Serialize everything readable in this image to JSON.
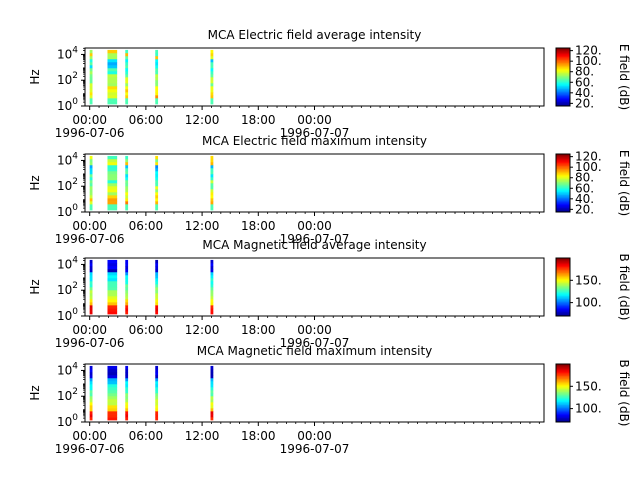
{
  "chart_data": [
    {
      "type": "heatmap",
      "title": "MCA  Electric field average intensity",
      "ylabel": "Hz",
      "yscale": "log",
      "yticks": [
        {
          "exp": "0"
        },
        {
          "exp": "2"
        },
        {
          "exp": "4"
        }
      ],
      "xlim_hours": [
        -0.5,
        48.5
      ],
      "xticks": [
        {
          "hour": 0,
          "label": "00:00",
          "date": "1996-07-06"
        },
        {
          "hour": 6,
          "label": "06:00",
          "date": ""
        },
        {
          "hour": 12,
          "label": "12:00",
          "date": ""
        },
        {
          "hour": 18,
          "label": "18:00",
          "date": ""
        },
        {
          "hour": 24,
          "label": "00:00",
          "date": "1996-07-07"
        }
      ],
      "colorbar": {
        "label": "E field (dB)",
        "ticks": [
          "20.",
          "40.",
          "60.",
          "80.",
          "100.",
          "120."
        ],
        "range": [
          15,
          125
        ]
      },
      "bursts_hours": [
        [
          0.0,
          0.1
        ],
        [
          1.9,
          2.9
        ],
        [
          3.8,
          3.95
        ],
        [
          7.0,
          7.15
        ],
        [
          12.9,
          13.0
        ]
      ]
    },
    {
      "type": "heatmap",
      "title": "MCA  Electric field maximum intensity",
      "ylabel": "Hz",
      "yscale": "log",
      "yticks": [
        {
          "exp": "0"
        },
        {
          "exp": "2"
        },
        {
          "exp": "4"
        }
      ],
      "xlim_hours": [
        -0.5,
        48.5
      ],
      "xticks": [
        {
          "hour": 0,
          "label": "00:00",
          "date": "1996-07-06"
        },
        {
          "hour": 6,
          "label": "06:00",
          "date": ""
        },
        {
          "hour": 12,
          "label": "12:00",
          "date": ""
        },
        {
          "hour": 18,
          "label": "18:00",
          "date": ""
        },
        {
          "hour": 24,
          "label": "00:00",
          "date": "1996-07-07"
        }
      ],
      "colorbar": {
        "label": "E field (dB)",
        "ticks": [
          "20.",
          "40.",
          "60.",
          "80.",
          "100.",
          "120."
        ],
        "range": [
          15,
          125
        ]
      },
      "bursts_hours": [
        [
          0.0,
          0.1
        ],
        [
          1.9,
          2.9
        ],
        [
          3.8,
          3.95
        ],
        [
          7.0,
          7.15
        ],
        [
          12.9,
          13.0
        ]
      ]
    },
    {
      "type": "heatmap",
      "title": "MCA  Magnetic field average intensity",
      "ylabel": "Hz",
      "yscale": "log",
      "yticks": [
        {
          "exp": "0"
        },
        {
          "exp": "2"
        },
        {
          "exp": "4"
        }
      ],
      "xlim_hours": [
        -0.5,
        48.5
      ],
      "xticks": [
        {
          "hour": 0,
          "label": "00:00",
          "date": "1996-07-06"
        },
        {
          "hour": 6,
          "label": "06:00",
          "date": ""
        },
        {
          "hour": 12,
          "label": "12:00",
          "date": ""
        },
        {
          "hour": 18,
          "label": "18:00",
          "date": ""
        },
        {
          "hour": 24,
          "label": "00:00",
          "date": "1996-07-07"
        }
      ],
      "colorbar": {
        "label": "B field (dB)",
        "ticks": [
          "100.",
          "150."
        ],
        "range": [
          70,
          200
        ]
      },
      "bursts_hours": [
        [
          0.0,
          0.1
        ],
        [
          1.9,
          2.9
        ],
        [
          3.8,
          3.95
        ],
        [
          7.0,
          7.15
        ],
        [
          12.9,
          13.0
        ]
      ]
    },
    {
      "type": "heatmap",
      "title": "MCA  Magnetic field maximum intensity",
      "ylabel": "Hz",
      "yscale": "log",
      "yticks": [
        {
          "exp": "0"
        },
        {
          "exp": "2"
        },
        {
          "exp": "4"
        }
      ],
      "xlim_hours": [
        -0.5,
        48.5
      ],
      "xticks": [
        {
          "hour": 0,
          "label": "00:00",
          "date": "1996-07-06"
        },
        {
          "hour": 6,
          "label": "06:00",
          "date": ""
        },
        {
          "hour": 12,
          "label": "12:00",
          "date": ""
        },
        {
          "hour": 18,
          "label": "18:00",
          "date": ""
        },
        {
          "hour": 24,
          "label": "00:00",
          "date": "1996-07-07"
        }
      ],
      "colorbar": {
        "label": "B field (dB)",
        "ticks": [
          "100.",
          "150."
        ],
        "range": [
          70,
          200
        ]
      },
      "bursts_hours": [
        [
          0.0,
          0.1
        ],
        [
          1.9,
          2.9
        ],
        [
          3.8,
          3.95
        ],
        [
          7.0,
          7.15
        ],
        [
          12.9,
          13.0
        ]
      ]
    }
  ]
}
